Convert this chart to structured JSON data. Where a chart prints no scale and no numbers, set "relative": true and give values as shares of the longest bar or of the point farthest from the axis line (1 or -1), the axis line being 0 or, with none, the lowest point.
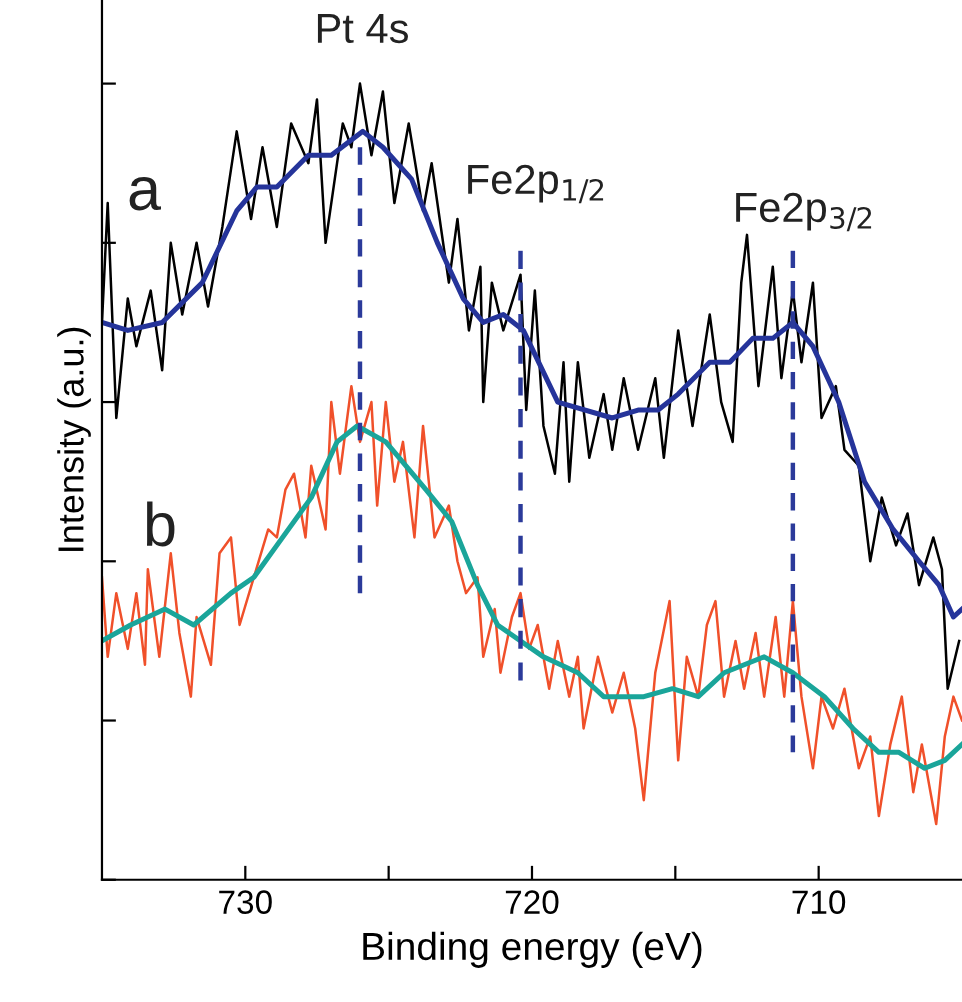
{
  "chart_data": {
    "type": "line",
    "xlabel": "Binding energy (eV)",
    "ylabel": "Intensity (a.u.)",
    "relative": true,
    "xlim": [
      735,
      705
    ],
    "xticks": [
      730,
      {
        "value": 725,
        "label": null
      },
      720,
      {
        "value": 715,
        "label": null
      },
      710
    ],
    "tick_labels": "x",
    "grid": false,
    "marker": "none",
    "line_style": "solid",
    "series": [
      {
        "color": "#000000",
        "x": [
          735.0,
          734.8,
          734.5,
          734.1,
          733.8,
          733.3,
          732.9,
          732.6,
          732.2,
          731.7,
          731.3,
          730.8,
          730.3,
          729.8,
          729.4,
          728.9,
          728.4,
          727.8,
          727.5,
          727.2,
          726.6,
          726.3,
          726.0,
          725.6,
          725.2,
          724.8,
          724.3,
          723.8,
          723.5,
          722.9,
          722.6,
          722.2,
          721.8,
          721.7,
          721.4,
          721.0,
          720.4,
          720.2,
          719.9,
          719.6,
          719.2,
          718.9,
          718.7,
          718.4,
          718.0,
          717.5,
          717.2,
          716.8,
          716.3,
          715.7,
          715.4,
          714.9,
          714.4,
          713.8,
          713.4,
          713.0,
          712.7,
          712.5,
          712.1,
          711.6,
          711.3,
          710.9,
          710.6,
          710.2,
          709.9,
          709.4,
          709.1,
          708.6,
          708.2,
          707.8,
          707.3,
          706.9,
          706.5,
          706.0,
          705.7,
          705.5,
          705.1
        ],
        "values": [
          0.7,
          0.85,
          0.58,
          0.73,
          0.67,
          0.74,
          0.64,
          0.8,
          0.71,
          0.8,
          0.72,
          0.82,
          0.94,
          0.83,
          0.92,
          0.82,
          0.95,
          0.9,
          0.98,
          0.8,
          0.95,
          0.92,
          1.0,
          0.91,
          0.99,
          0.85,
          0.95,
          0.84,
          0.9,
          0.75,
          0.83,
          0.69,
          0.77,
          0.6,
          0.75,
          0.69,
          0.76,
          0.59,
          0.74,
          0.57,
          0.51,
          0.65,
          0.5,
          0.65,
          0.53,
          0.61,
          0.54,
          0.63,
          0.54,
          0.63,
          0.53,
          0.69,
          0.57,
          0.71,
          0.6,
          0.55,
          0.75,
          0.81,
          0.62,
          0.77,
          0.63,
          0.74,
          0.65,
          0.75,
          0.58,
          0.62,
          0.54,
          0.52,
          0.4,
          0.48,
          0.42,
          0.46,
          0.37,
          0.43,
          0.39,
          0.24,
          0.3
        ]
      },
      {
        "color": "#25349a",
        "x": [
          735.0,
          734.1,
          732.9,
          731.5,
          730.3,
          729.6,
          728.9,
          727.8,
          727.0,
          725.9,
          725.2,
          724.2,
          723.3,
          722.4,
          721.7,
          721.0,
          720.3,
          719.1,
          717.2,
          716.3,
          715.6,
          714.9,
          713.8,
          713.1,
          712.3,
          711.6,
          710.9,
          710.2,
          709.3,
          708.4,
          707.4,
          706.5,
          705.8,
          705.3,
          705.0
        ],
        "values": [
          0.7,
          0.69,
          0.7,
          0.75,
          0.84,
          0.87,
          0.87,
          0.91,
          0.91,
          0.94,
          0.92,
          0.88,
          0.8,
          0.73,
          0.7,
          0.71,
          0.69,
          0.6,
          0.58,
          0.59,
          0.59,
          0.61,
          0.65,
          0.65,
          0.68,
          0.68,
          0.7,
          0.67,
          0.6,
          0.5,
          0.44,
          0.4,
          0.37,
          0.33,
          0.34
        ]
      },
      {
        "color": "#f0502a",
        "x": [
          735.0,
          734.8,
          734.5,
          734.1,
          733.8,
          733.5,
          733.4,
          733.0,
          732.6,
          732.3,
          731.9,
          731.7,
          731.2,
          730.9,
          730.5,
          730.2,
          729.7,
          729.2,
          728.9,
          728.6,
          728.3,
          727.9,
          727.7,
          727.2,
          727.0,
          726.7,
          726.3,
          726.0,
          725.6,
          725.4,
          725.1,
          724.8,
          724.5,
          724.1,
          723.8,
          723.4,
          722.9,
          722.6,
          722.3,
          721.9,
          721.7,
          721.3,
          721.1,
          720.7,
          720.4,
          720.1,
          719.8,
          719.4,
          719.1,
          718.7,
          718.4,
          718.2,
          717.7,
          717.2,
          716.8,
          716.4,
          716.1,
          715.7,
          715.2,
          714.9,
          714.6,
          714.2,
          713.9,
          713.6,
          713.3,
          712.9,
          712.6,
          712.2,
          711.9,
          711.5,
          711.2,
          710.9,
          710.6,
          710.2,
          709.9,
          709.5,
          709.1,
          708.6,
          708.2,
          707.9,
          707.5,
          707.1,
          706.7,
          706.4,
          705.9,
          705.6,
          705.3,
          705.0
        ],
        "values": [
          0.38,
          0.28,
          0.36,
          0.29,
          0.36,
          0.27,
          0.39,
          0.28,
          0.41,
          0.31,
          0.23,
          0.33,
          0.27,
          0.41,
          0.43,
          0.32,
          0.38,
          0.44,
          0.43,
          0.49,
          0.51,
          0.43,
          0.52,
          0.44,
          0.6,
          0.51,
          0.62,
          0.55,
          0.6,
          0.47,
          0.6,
          0.5,
          0.55,
          0.43,
          0.57,
          0.43,
          0.47,
          0.4,
          0.36,
          0.38,
          0.28,
          0.34,
          0.26,
          0.33,
          0.36,
          0.29,
          0.32,
          0.24,
          0.3,
          0.23,
          0.28,
          0.19,
          0.28,
          0.21,
          0.26,
          0.19,
          0.1,
          0.26,
          0.35,
          0.15,
          0.28,
          0.23,
          0.32,
          0.35,
          0.23,
          0.3,
          0.24,
          0.31,
          0.23,
          0.33,
          0.23,
          0.35,
          0.23,
          0.14,
          0.23,
          0.19,
          0.24,
          0.14,
          0.18,
          0.08,
          0.17,
          0.23,
          0.11,
          0.17,
          0.07,
          0.18,
          0.23,
          0.2
        ]
      },
      {
        "color": "#1aa59a",
        "x": [
          735.0,
          734.0,
          732.8,
          731.8,
          730.5,
          729.7,
          728.9,
          727.7,
          726.8,
          726.1,
          725.1,
          723.7,
          722.8,
          721.9,
          721.2,
          719.6,
          718.4,
          717.5,
          716.1,
          715.1,
          714.2,
          713.3,
          711.9,
          710.9,
          709.8,
          708.8,
          707.9,
          707.2,
          706.3,
          705.6,
          705.0
        ],
        "values": [
          0.3,
          0.32,
          0.34,
          0.32,
          0.36,
          0.38,
          0.42,
          0.48,
          0.55,
          0.57,
          0.55,
          0.49,
          0.45,
          0.37,
          0.32,
          0.28,
          0.26,
          0.23,
          0.23,
          0.24,
          0.23,
          0.26,
          0.28,
          0.26,
          0.23,
          0.19,
          0.16,
          0.16,
          0.14,
          0.15,
          0.17
        ]
      },
      {
        "color": "#2b3a9a",
        "line_style": "dashed",
        "x": [
          726,
          726
        ],
        "values": [
          0.92,
          0.36
        ]
      },
      {
        "color": "#2b3a9a",
        "line_style": "dashed",
        "x": [
          720.4,
          720.4
        ],
        "values": [
          0.79,
          0.25
        ]
      },
      {
        "color": "#2b3a9a",
        "line_style": "dashed",
        "x": [
          710.9,
          710.9
        ],
        "values": [
          0.79,
          0.16
        ]
      }
    ],
    "annotations": [
      "Pt 4s",
      "Fe2p$_{1/2}$",
      "Fe2p$_{3/2}$",
      "a",
      "b"
    ]
  }
}
